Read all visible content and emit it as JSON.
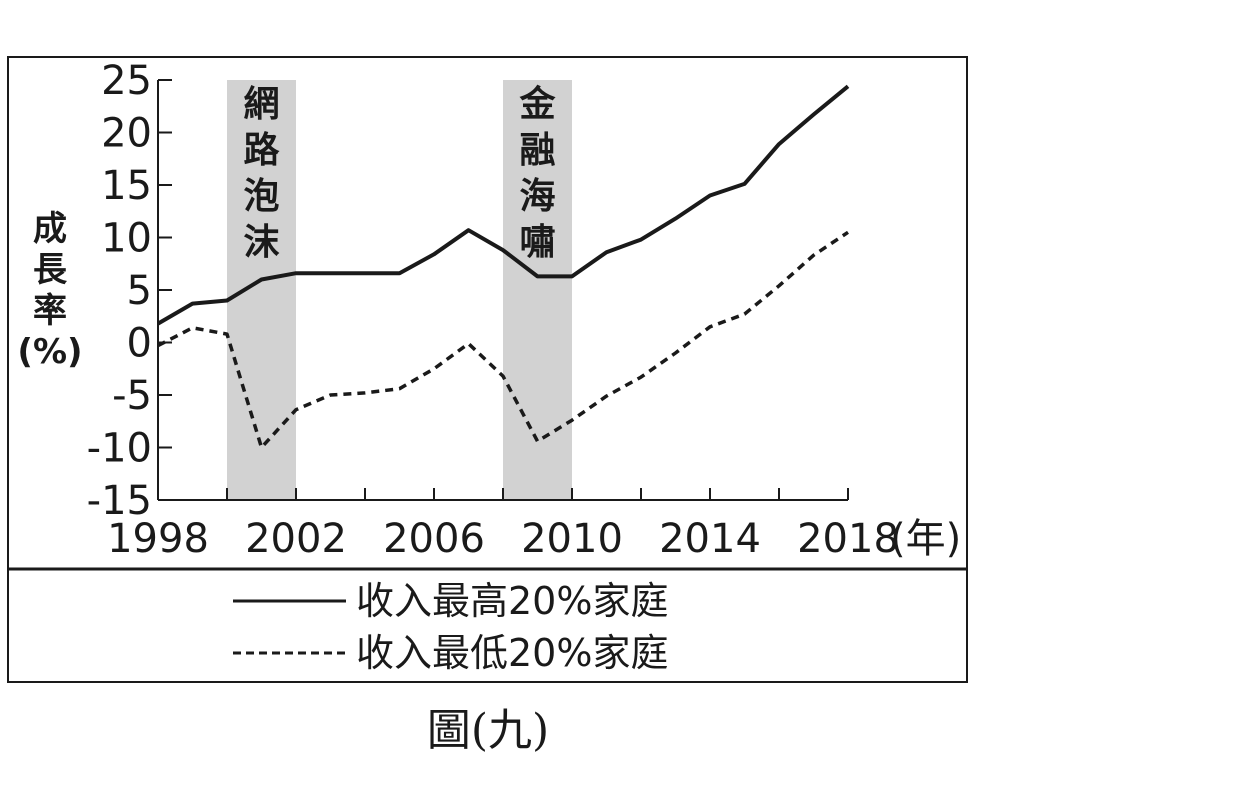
{
  "chart_data": {
    "type": "line",
    "x": [
      1998,
      1999,
      2000,
      2001,
      2002,
      2003,
      2004,
      2005,
      2006,
      2007,
      2008,
      2009,
      2010,
      2011,
      2012,
      2013,
      2014,
      2015,
      2016,
      2017,
      2018
    ],
    "series": [
      {
        "name": "收入最高20%家庭",
        "style": "solid",
        "values": [
          1.8,
          3.7,
          4.0,
          6.0,
          6.6,
          6.6,
          6.6,
          6.6,
          8.4,
          10.7,
          8.8,
          6.3,
          6.3,
          8.6,
          9.8,
          11.8,
          14.0,
          15.1,
          18.9,
          21.7,
          24.4
        ]
      },
      {
        "name": "收入最低20%家庭",
        "style": "dashed",
        "values": [
          -0.3,
          1.4,
          0.8,
          -10.0,
          -6.4,
          -5.0,
          -4.8,
          -4.4,
          -2.5,
          -0.1,
          -3.2,
          -9.4,
          -7.4,
          -5.1,
          -3.3,
          -1.0,
          1.5,
          2.7,
          5.4,
          8.3,
          10.5
        ]
      }
    ],
    "xlim": [
      1998,
      2018
    ],
    "ylim": [
      -15,
      25
    ],
    "x_ticks": [
      1998,
      2000,
      2002,
      2004,
      2006,
      2008,
      2010,
      2012,
      2014,
      2016,
      2018
    ],
    "x_tick_labels": [
      "1998",
      "2002",
      "2006",
      "2010",
      "2014",
      "2018"
    ],
    "x_unit": "(年)",
    "y_ticks": [
      25,
      20,
      15,
      10,
      5,
      0,
      -5,
      -10,
      -15
    ],
    "ylabel_lines": [
      "成",
      "長",
      "率",
      "(%)"
    ],
    "shaded_periods": [
      {
        "start": 2000,
        "end": 2002,
        "label_chars": [
          "網",
          "路",
          "泡",
          "沫"
        ]
      },
      {
        "start": 2008,
        "end": 2010,
        "label_chars": [
          "金",
          "融",
          "海",
          "嘯"
        ]
      }
    ],
    "legend_position": "bottom",
    "grid": false
  },
  "caption": "圖(九)"
}
